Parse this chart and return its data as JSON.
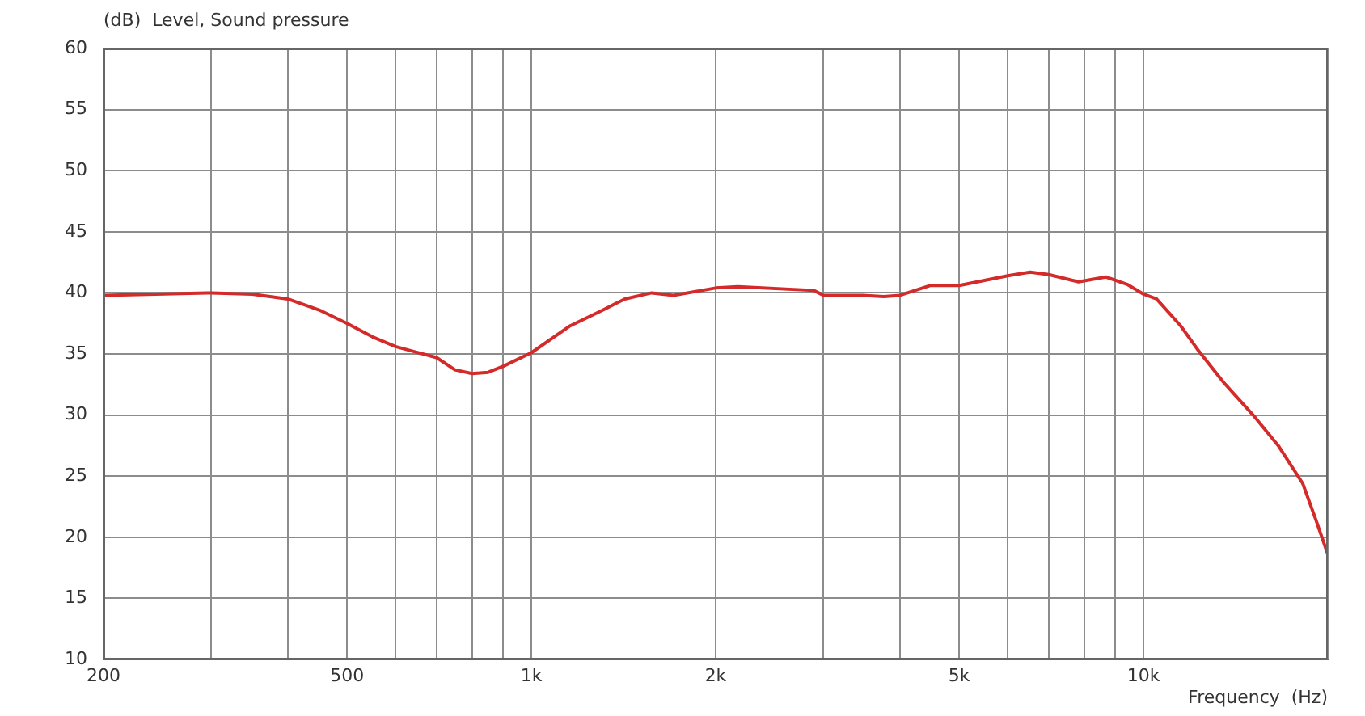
{
  "chart_data": {
    "type": "line",
    "ylabel": "(dB)  Level, Sound pressure",
    "xlabel": "Frequency  (Hz)",
    "log": "x",
    "xlim": [
      200,
      20000
    ],
    "xticks": [
      {
        "value": 200,
        "label": "200"
      },
      {
        "value": 300,
        "label": null
      },
      {
        "value": 400,
        "label": null
      },
      {
        "value": 500,
        "label": "500"
      },
      {
        "value": 600,
        "label": null
      },
      {
        "value": 700,
        "label": null
      },
      {
        "value": 800,
        "label": null
      },
      {
        "value": 900,
        "label": null
      },
      {
        "value": 1000,
        "label": "1k"
      },
      {
        "value": 2000,
        "label": "2k"
      },
      {
        "value": 3000,
        "label": null
      },
      {
        "value": 4000,
        "label": null
      },
      {
        "value": 5000,
        "label": "5k"
      },
      {
        "value": 6000,
        "label": null
      },
      {
        "value": 7000,
        "label": null
      },
      {
        "value": 8000,
        "label": null
      },
      {
        "value": 9000,
        "label": null
      },
      {
        "value": 10000,
        "label": "10k"
      },
      {
        "value": 20000,
        "label": null
      }
    ],
    "ylim": [
      10,
      60
    ],
    "yticks": [
      10,
      15,
      20,
      25,
      30,
      35,
      40,
      45,
      50,
      55,
      60
    ],
    "grid": true,
    "x": [
      200,
      300,
      350,
      400,
      450,
      500,
      550,
      600,
      700,
      750,
      800,
      850,
      900,
      1000,
      1157,
      1310,
      1421,
      1572,
      1706,
      2000,
      2175,
      2892,
      3000,
      3475,
      3765,
      4000,
      4480,
      5000,
      6000,
      6530,
      7000,
      7830,
      8680,
      9400,
      10000,
      10500,
      11500,
      12240,
      13500,
      15100,
      16600,
      18200,
      19100,
      20000
    ],
    "series": [
      {
        "color": "#d42a2a",
        "values": [
          39.8,
          40.0,
          39.9,
          39.5,
          38.6,
          37.5,
          36.4,
          35.6,
          34.7,
          33.7,
          33.4,
          33.5,
          34.0,
          35.1,
          37.3,
          38.6,
          39.5,
          40.0,
          39.8,
          40.4,
          40.5,
          40.2,
          39.8,
          39.8,
          39.7,
          39.8,
          40.6,
          40.6,
          41.4,
          41.7,
          41.5,
          40.9,
          41.3,
          40.7,
          39.9,
          39.5,
          37.3,
          35.4,
          32.7,
          30.0,
          27.5,
          24.4,
          21.5,
          18.6
        ]
      }
    ]
  }
}
